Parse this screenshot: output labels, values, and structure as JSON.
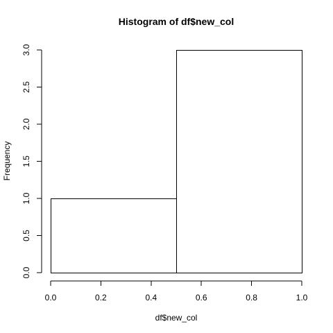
{
  "chart_data": {
    "type": "bar",
    "subtype": "histogram",
    "title": "Histogram of df$new_col",
    "xlabel": "df$new_col",
    "ylabel": "Frequency",
    "bins": [
      {
        "start": 0.0,
        "end": 0.5,
        "count": 1
      },
      {
        "start": 0.5,
        "end": 1.0,
        "count": 3
      }
    ],
    "xlim": [
      0.0,
      1.0
    ],
    "ylim": [
      0.0,
      3.0
    ],
    "x_ticks": [
      "0.0",
      "0.2",
      "0.4",
      "0.6",
      "0.8",
      "1.0"
    ],
    "y_ticks": [
      "0.0",
      "0.5",
      "1.0",
      "1.5",
      "2.0",
      "2.5",
      "3.0"
    ],
    "bar_fill": "#ffffff",
    "bar_stroke": "#000000",
    "grid": false,
    "legend": "none"
  }
}
